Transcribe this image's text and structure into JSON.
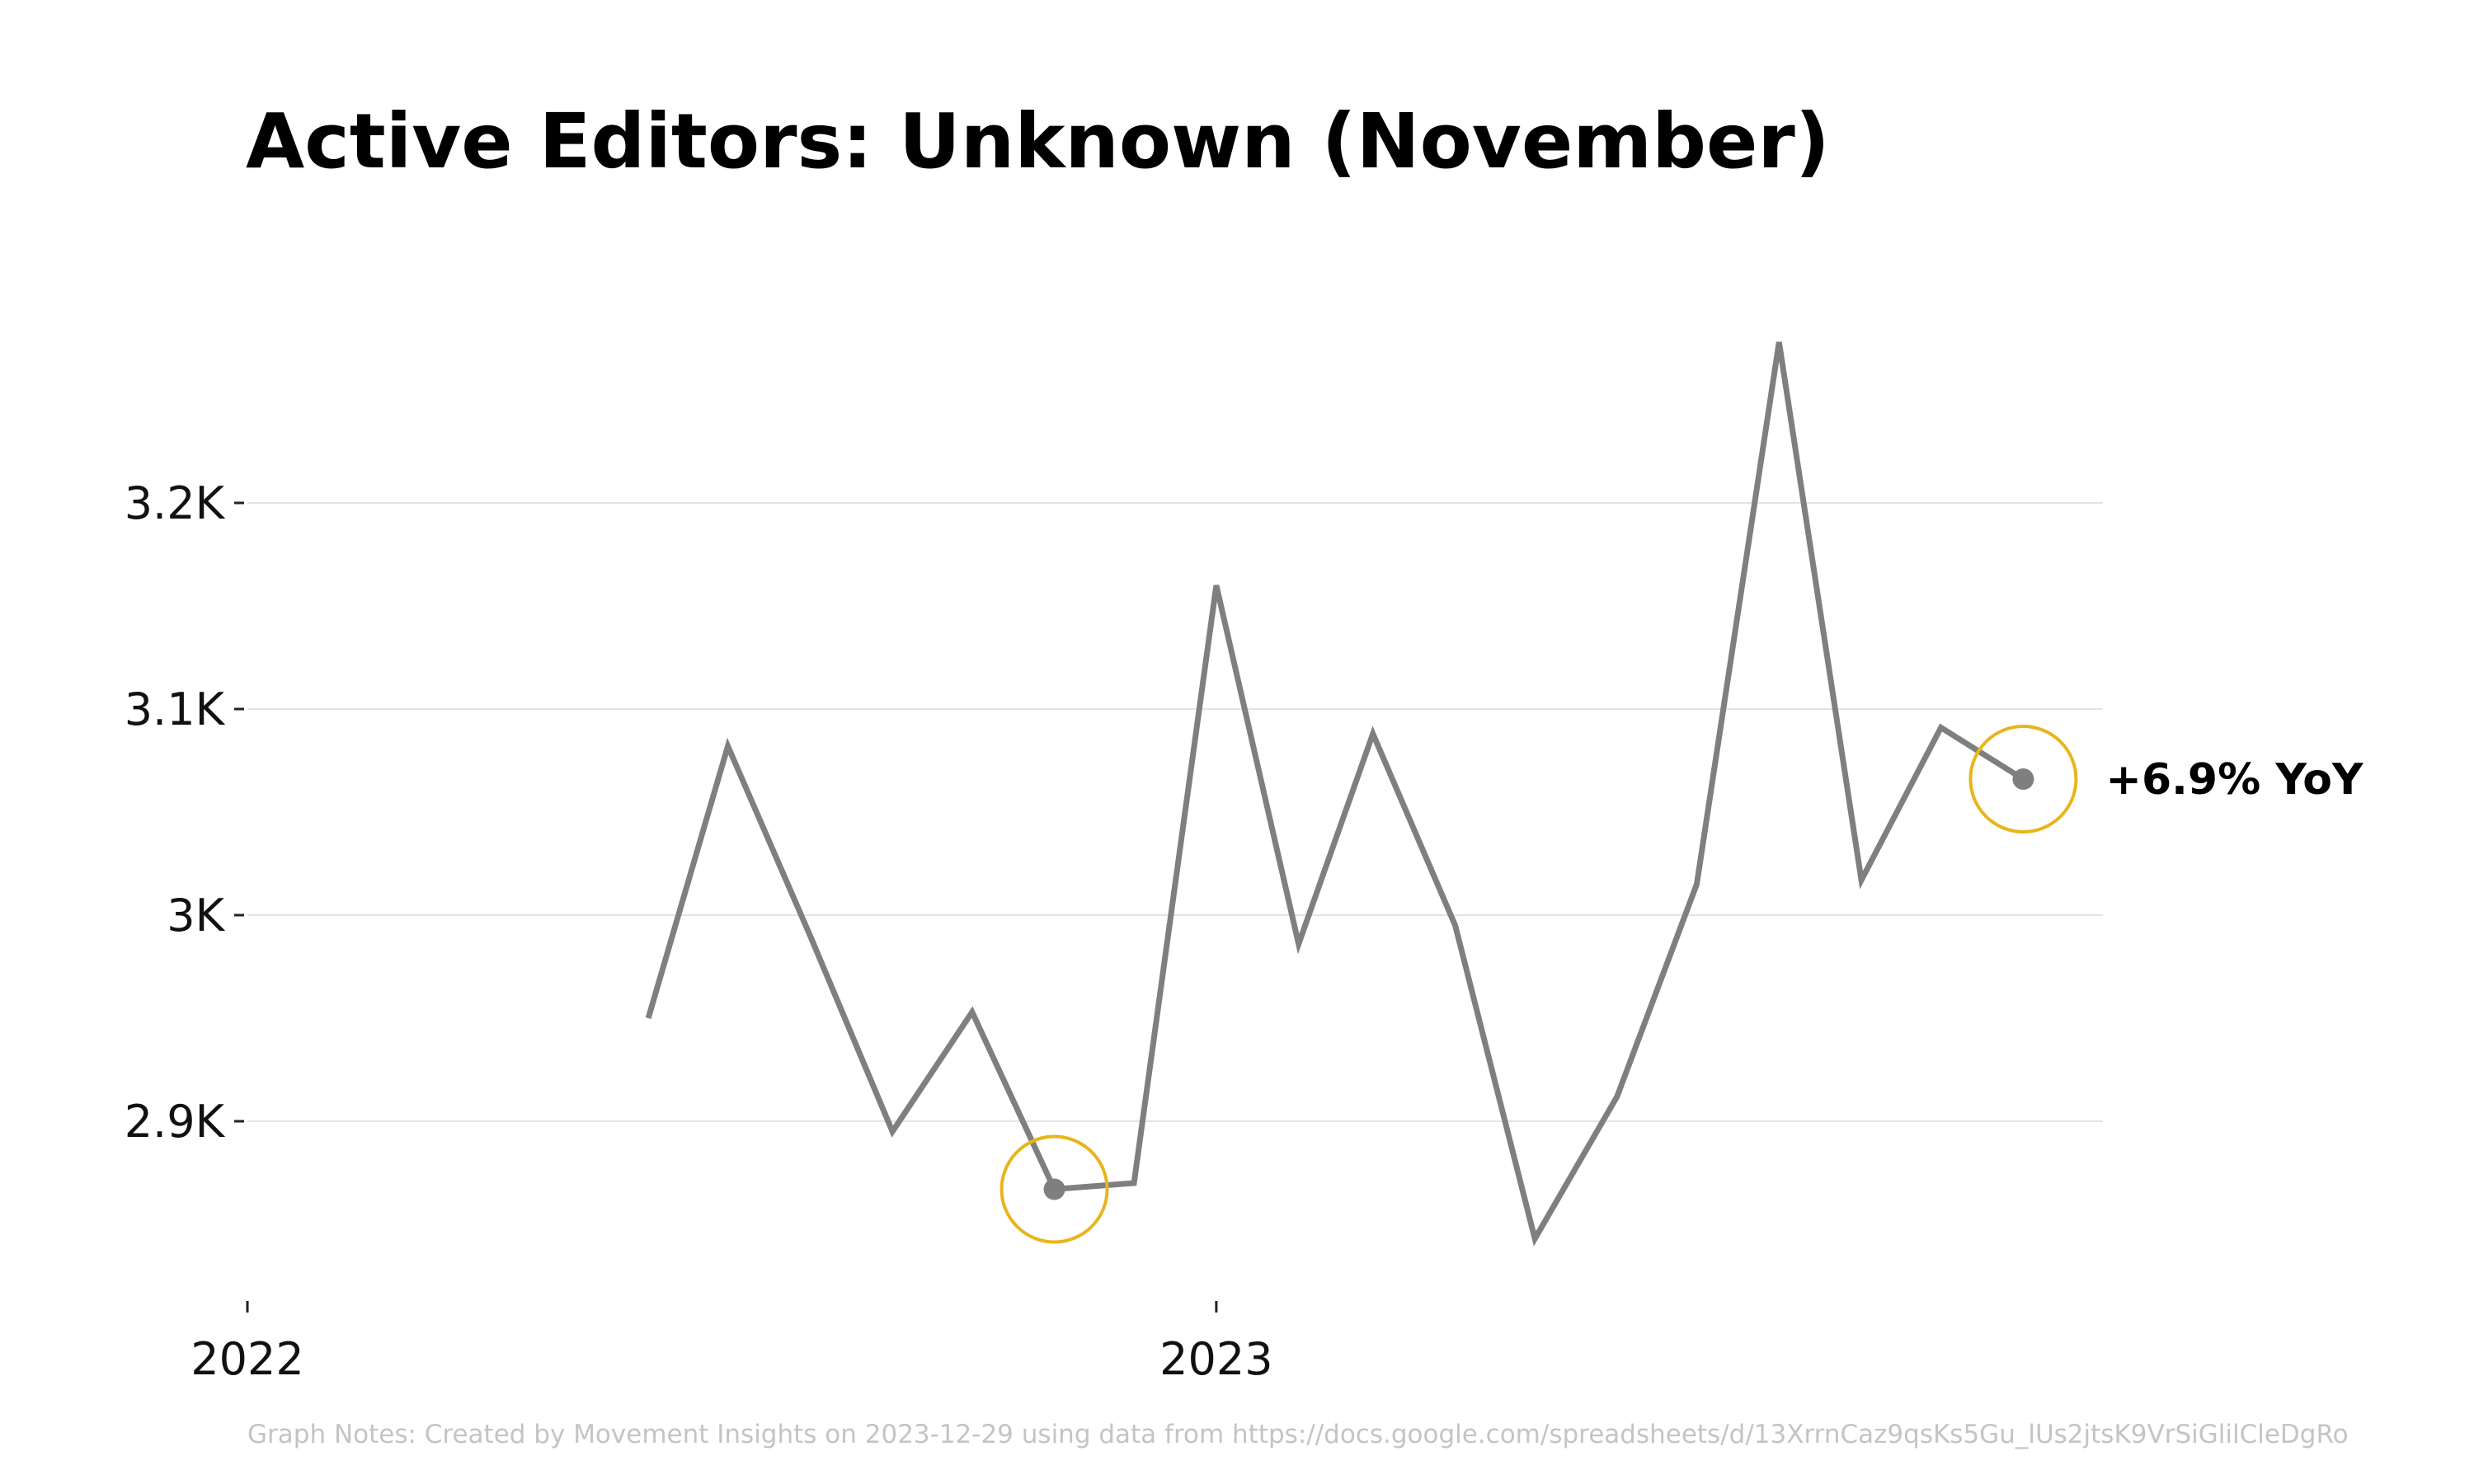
{
  "chart_data": {
    "type": "line",
    "title": "Active Editors: Unknown (November)",
    "xlabel": "",
    "ylabel": "",
    "x_tick_labels": [
      "2022",
      "2023"
    ],
    "x_ticks": [
      "2022-01-01",
      "2023-01-01"
    ],
    "xlim": [
      "2022-01-01",
      "2023-12-01"
    ],
    "y_tick_labels": [
      "2.9K",
      "3K",
      "3.1K",
      "3.2K"
    ],
    "y_ticks": [
      2900,
      3000,
      3100,
      3200
    ],
    "ylim": [
      2820,
      3300
    ],
    "grid": "horizontal",
    "series": [
      {
        "color": "#7f7f7f",
        "x": [
          "2022-06-01",
          "2022-07-01",
          "2022-08-01",
          "2022-09-01",
          "2022-10-01",
          "2022-11-01",
          "2022-12-01",
          "2023-01-01",
          "2023-02-01",
          "2023-03-01",
          "2023-04-01",
          "2023-05-01",
          "2023-06-01",
          "2023-07-01",
          "2023-08-01",
          "2023-09-01",
          "2023-10-01",
          "2023-11-01"
        ],
        "values": [
          2950,
          3082,
          2990,
          2895,
          2953,
          2867,
          2870,
          3160,
          2986,
          3088,
          2995,
          2843,
          2912,
          3015,
          3278,
          3017,
          3091,
          3066
        ]
      }
    ],
    "highlights": [
      {
        "x": "2022-11-01",
        "value": 2867,
        "color": "#e8b51a"
      },
      {
        "x": "2023-11-01",
        "value": 3066,
        "color": "#e8b51a",
        "label": "+6.9% YoY"
      }
    ]
  },
  "notes": "Graph Notes: Created by Movement Insights  on 2023-12-29 using data from https://docs.google.com/spreadsheets/d/13XrrnCaz9qsKs5Gu_lUs2jtsK9VrSiGlilCleDgRo"
}
